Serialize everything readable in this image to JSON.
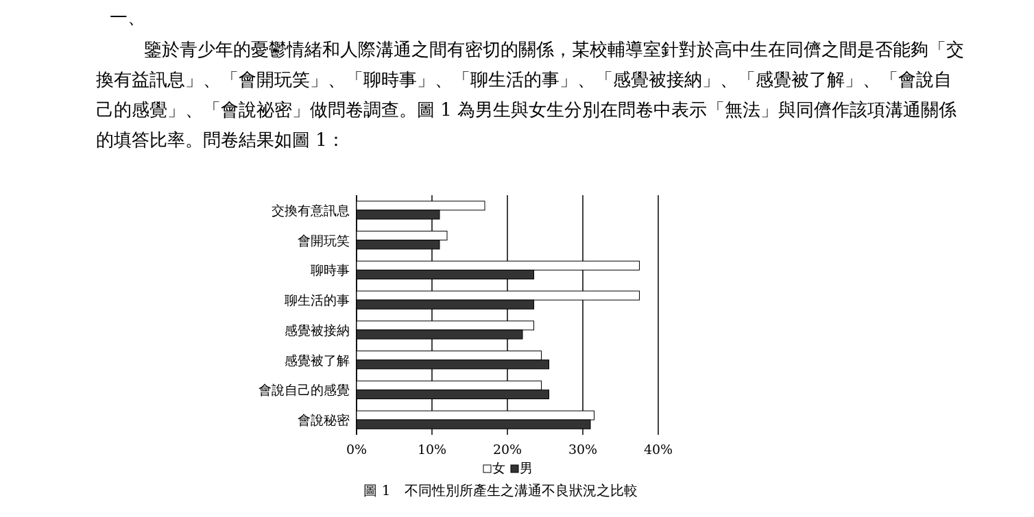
{
  "chart_data": {
    "type": "bar",
    "orientation": "horizontal",
    "title": "一、",
    "subtitle": "鑒於青少年的憂鬱情緒和人際溝通之間有密切的關係，某校輔導室針對於高中生在同儕之間是否能夠「交換有益訊息」、「會開玩笑」、「聊時事」、「聊生活的事」、「感覺被接納」、「感覺被了解」、「會說自己的感覺」、「會說祕密」做問卷調查。圖 1 為男生與女生分別在問卷中表示「無法」與同儕作該項溝通關係的填答比率。問卷結果如圖 1：",
    "categories": [
      "交換有意訊息",
      "會開玩笑",
      "聊時事",
      "聊生活的事",
      "感覺被接納",
      "感覺被了解",
      "會說自己的感覺",
      "會說秘密"
    ],
    "series": [
      {
        "name": "女",
        "color": "#ffffff",
        "values": [
          17,
          12,
          37.5,
          37.5,
          23.5,
          24.5,
          24.5,
          31.5
        ]
      },
      {
        "name": "男",
        "color": "#333333",
        "values": [
          11,
          11,
          23.5,
          23.5,
          22,
          25.5,
          25.5,
          31
        ]
      }
    ],
    "xlim": [
      0,
      40
    ],
    "xticks": [
      {
        "value": 0,
        "label": "0%"
      },
      {
        "value": 10,
        "label": "10%"
      },
      {
        "value": 20,
        "label": "20%"
      },
      {
        "value": 30,
        "label": "30%"
      },
      {
        "value": 40,
        "label": "40%"
      }
    ],
    "grid": "x",
    "legend": "bottom",
    "annotations": [
      "圖 1　不同性別所產生之溝通不良狀況之比較"
    ]
  }
}
